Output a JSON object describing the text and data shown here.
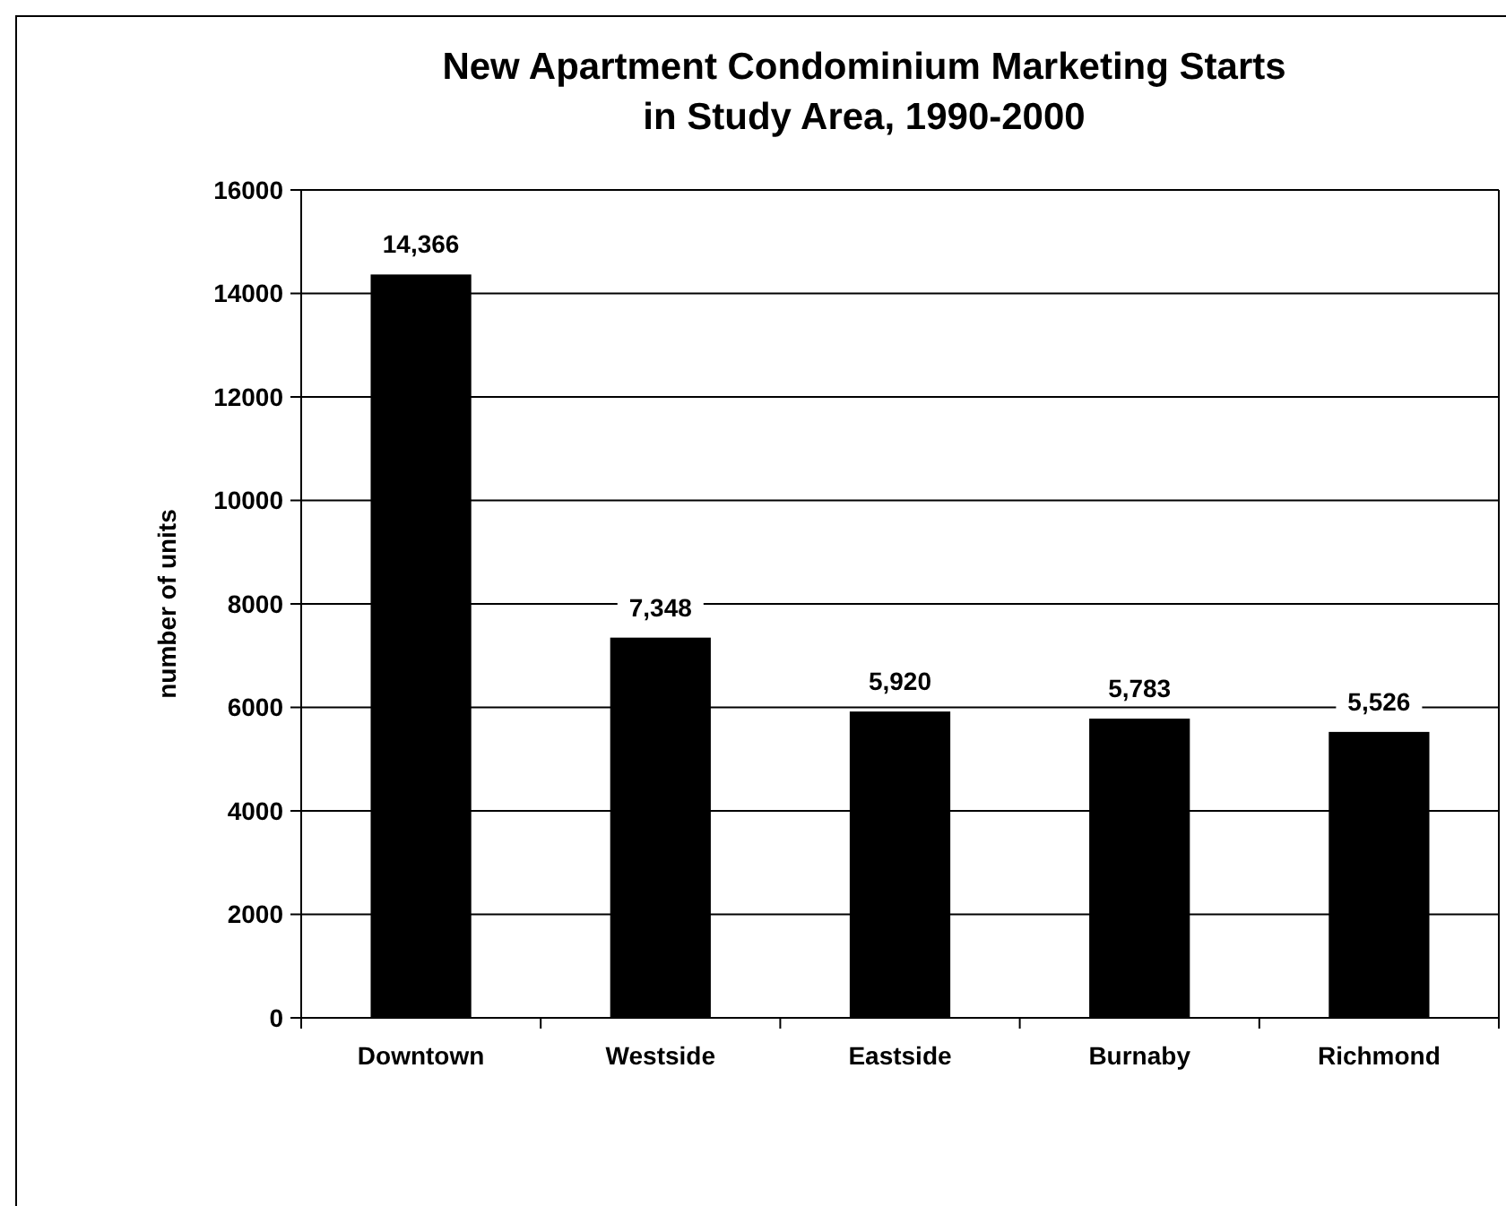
{
  "chart_data": {
    "type": "bar",
    "title": "New Apartment Condominium Marketing Starts\nin Study Area, 1990-2000",
    "ylabel": "number of units",
    "categories": [
      "Downtown",
      "Westside",
      "Eastside",
      "Burnaby",
      "Richmond"
    ],
    "values": [
      14366,
      7348,
      5920,
      5783,
      5526
    ],
    "value_labels": [
      "14,366",
      "7,348",
      "5,920",
      "5,783",
      "5,526"
    ],
    "color": "#000000",
    "ylim": [
      0,
      16000
    ],
    "yticks": [
      0,
      2000,
      4000,
      6000,
      8000,
      10000,
      12000,
      14000,
      16000
    ],
    "grid": "y"
  }
}
